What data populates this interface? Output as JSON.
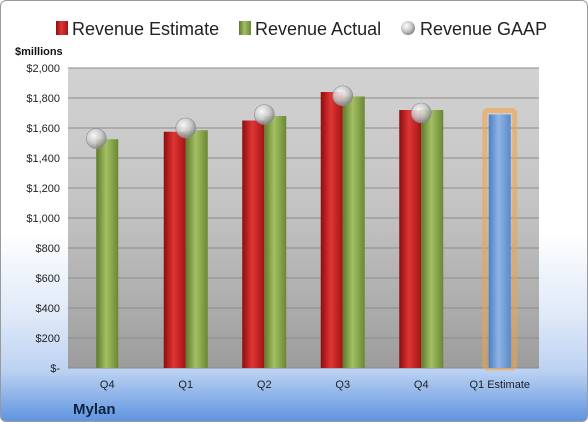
{
  "chart_data": {
    "type": "bar",
    "ylabel": "$millions",
    "company": "Mylan",
    "categories": [
      "Q4",
      "Q1",
      "Q2",
      "Q3",
      "Q4",
      "Q1 Estimate"
    ],
    "ylim": [
      0,
      2000
    ],
    "yticks": [
      0,
      200,
      400,
      600,
      800,
      1000,
      1200,
      1400,
      1600,
      1800,
      2000
    ],
    "ytick_labels": [
      "$-",
      "$200",
      "$400",
      "$600",
      "$800",
      "$1,000",
      "$1,200",
      "$1,400",
      "$1,600",
      "$1,800",
      "$2,000"
    ],
    "grid": true,
    "legend_position": "top",
    "series": [
      {
        "name": "Revenue Estimate",
        "kind": "bar",
        "color": "#cc1f1f",
        "values": [
          null,
          1575,
          1650,
          1840,
          1720,
          null
        ]
      },
      {
        "name": "Revenue Actual",
        "kind": "bar",
        "color": "#8aa84a",
        "values": [
          1525,
          1585,
          1680,
          1810,
          1720,
          null
        ]
      },
      {
        "name": "Revenue GAAP",
        "kind": "marker",
        "color": "#c0c0c0",
        "values": [
          1530,
          1600,
          1690,
          1815,
          1700,
          null
        ]
      }
    ],
    "estimate_bar": {
      "category": "Q1 Estimate",
      "value": 1690,
      "color": "#6e9bd6",
      "glow": "#f5a23a"
    }
  }
}
